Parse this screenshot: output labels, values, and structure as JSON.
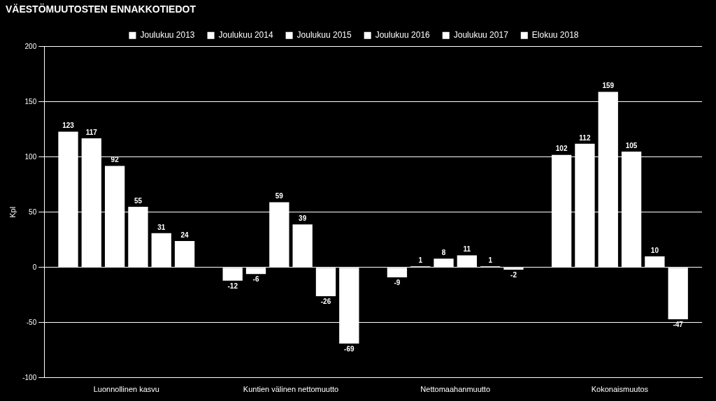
{
  "chart_data": {
    "type": "bar",
    "title": "VÄESTÖMUUTOSTEN ENNAKKOTIEDOT",
    "y_label": "Kpl",
    "categories": [
      "Luonnollinen kasvu",
      "Kuntien välinen nettomuutto",
      "Nettomaahanmuutto",
      "Kokonaismuutos"
    ],
    "series": [
      {
        "name": "Joulukuu 2013",
        "color": "#ffffff",
        "values": [
          123,
          -12,
          -9,
          102
        ]
      },
      {
        "name": "Joulukuu 2014",
        "color": "#ffffff",
        "values": [
          117,
          -6,
          1,
          112
        ]
      },
      {
        "name": "Joulukuu 2015",
        "color": "#ffffff",
        "values": [
          92,
          59,
          8,
          159
        ]
      },
      {
        "name": "Joulukuu 2016",
        "color": "#ffffff",
        "values": [
          55,
          39,
          11,
          105
        ]
      },
      {
        "name": "Joulukuu 2017",
        "color": "#ffffff",
        "values": [
          31,
          -26,
          1,
          10
        ]
      },
      {
        "name": "Elokuu 2018",
        "color": "#ffffff",
        "values": [
          24,
          -69,
          -2,
          -47
        ]
      }
    ],
    "ylim": [
      -100,
      200
    ],
    "yticks": [
      -100,
      -50,
      0,
      50,
      100,
      150,
      200
    ],
    "grid": true,
    "legend": "top",
    "data_labels": true
  }
}
